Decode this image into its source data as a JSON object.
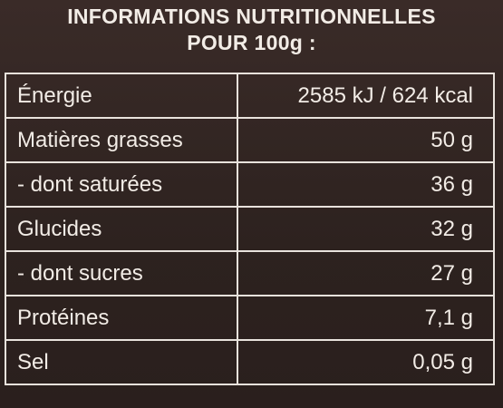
{
  "header": {
    "title": [
      "INFORMATIONS NUTRITIONNELLES",
      "POUR 100g :"
    ]
  },
  "table": {
    "rows": [
      [
        "Énergie",
        "2585 kJ / 624 kcal"
      ],
      [
        "Matières grasses",
        "50 g"
      ],
      [
        "- dont saturées",
        "36 g"
      ],
      [
        "Glucides",
        "32 g"
      ],
      [
        "- dont sucres",
        "27 g"
      ],
      [
        "Protéines",
        "7,1 g"
      ],
      [
        "Sel",
        "0,05 g"
      ]
    ]
  }
}
